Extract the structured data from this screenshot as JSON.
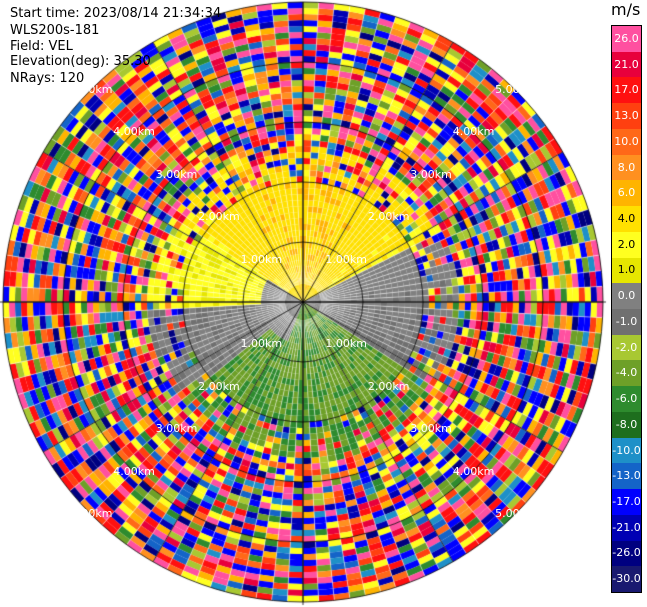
{
  "header": {
    "start_time": "Start time: 2023/08/14 21:34:34",
    "instrument": "WLS200s-181",
    "field": "Field: VEL",
    "elevation": "Elevation(deg): 35.30",
    "nrays": "NRays: 120"
  },
  "colorbar": {
    "unit": "m/s",
    "levels": [
      "26.0",
      "21.0",
      "17.0",
      "13.0",
      "10.0",
      "8.0",
      "6.0",
      "4.0",
      "2.0",
      "1.0",
      "0.0",
      "-1.0",
      "-2.0",
      "-4.0",
      "-6.0",
      "-8.0",
      "-10.0",
      "-13.0",
      "-17.0",
      "-21.0",
      "-26.0",
      "-30.0"
    ],
    "colors": [
      "#ff50a0",
      "#e8003c",
      "#ff1010",
      "#ff4010",
      "#ff6818",
      "#ff9020",
      "#ffb400",
      "#ffe000",
      "#ffff20",
      "#e6e600",
      "#808080",
      "#707070",
      "#a8c832",
      "#6ea028",
      "#2e8b2e",
      "#1e6e1e",
      "#1e90c8",
      "#1464c8",
      "#0000ff",
      "#0000b4",
      "#000080",
      "#191970"
    ]
  },
  "range_labels": [
    "1.00km",
    "2.00km",
    "3.00km",
    "4.00km",
    "5.00km"
  ],
  "chart_data": {
    "type": "ppi",
    "field": "VEL",
    "units": "m/s",
    "nrays": 120,
    "elevation_deg": 35.3,
    "rings_km": [
      1,
      2,
      3,
      4,
      5
    ],
    "value_range": [
      -30,
      30
    ],
    "clean_zone_radius_km": 2.0,
    "noise_zone_start_km": 2.6
  }
}
